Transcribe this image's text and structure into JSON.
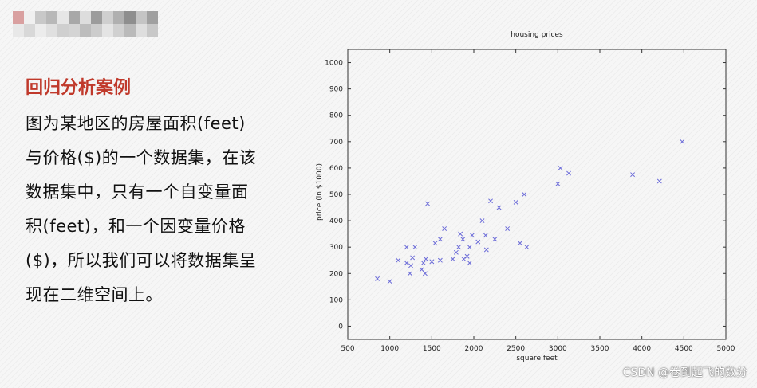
{
  "slide": {
    "heading": "回归分析案例",
    "body": "图为某地区的房屋面积(feet)\n与价格($)的一个数据集，在该\n数据集中，只有一个自变量面\n积(feet)，和一个因变量价格\n($)，所以我们可以将数据集呈\n现在二维空间上。"
  },
  "watermark": "CSDN @卷到起飞的数分",
  "colors": {
    "heading": "#c0392b",
    "marker": "#6a6ad8"
  },
  "chart_data": {
    "type": "scatter",
    "title": "housing prices",
    "xlabel": "square feet",
    "ylabel": "price (in $1000)",
    "xlim": [
      500,
      5000
    ],
    "ylim": [
      -50,
      1050
    ],
    "xticks": [
      500,
      1000,
      1500,
      2000,
      2500,
      3000,
      3500,
      4000,
      4500,
      5000
    ],
    "yticks": [
      0,
      100,
      200,
      300,
      400,
      500,
      600,
      700,
      800,
      900,
      1000
    ],
    "marker": "x",
    "grid": false,
    "points": [
      [
        852,
        180
      ],
      [
        1000,
        170
      ],
      [
        1100,
        250
      ],
      [
        1200,
        240
      ],
      [
        1200,
        300
      ],
      [
        1240,
        200
      ],
      [
        1250,
        230
      ],
      [
        1270,
        260
      ],
      [
        1300,
        300
      ],
      [
        1380,
        215
      ],
      [
        1400,
        240
      ],
      [
        1420,
        200
      ],
      [
        1430,
        255
      ],
      [
        1450,
        465
      ],
      [
        1500,
        245
      ],
      [
        1540,
        315
      ],
      [
        1600,
        330
      ],
      [
        1600,
        250
      ],
      [
        1650,
        370
      ],
      [
        1750,
        255
      ],
      [
        1790,
        280
      ],
      [
        1820,
        300
      ],
      [
        1840,
        350
      ],
      [
        1870,
        330
      ],
      [
        1880,
        255
      ],
      [
        1920,
        265
      ],
      [
        1950,
        300
      ],
      [
        1950,
        240
      ],
      [
        1980,
        345
      ],
      [
        2050,
        320
      ],
      [
        2100,
        400
      ],
      [
        2140,
        345
      ],
      [
        2150,
        290
      ],
      [
        2200,
        475
      ],
      [
        2250,
        330
      ],
      [
        2300,
        450
      ],
      [
        2400,
        370
      ],
      [
        2500,
        470
      ],
      [
        2550,
        315
      ],
      [
        2600,
        500
      ],
      [
        2630,
        300
      ],
      [
        3000,
        540
      ],
      [
        3030,
        600
      ],
      [
        3130,
        580
      ],
      [
        3890,
        575
      ],
      [
        4210,
        550
      ],
      [
        4480,
        700
      ]
    ]
  }
}
